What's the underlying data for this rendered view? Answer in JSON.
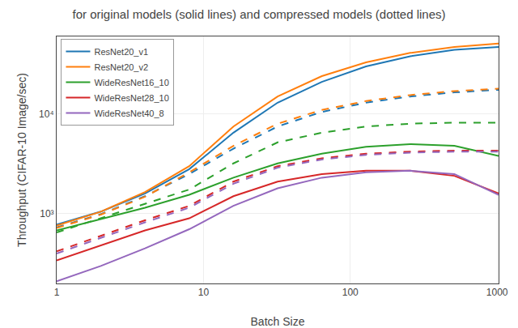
{
  "chart_data": {
    "type": "line",
    "title": "for original models (solid lines) and compressed models (dotted lines)",
    "xlabel": "Batch Size",
    "ylabel": "Throughput (CIFAR-10 Image/sec)",
    "x": [
      1,
      2,
      4,
      8,
      16,
      32,
      64,
      128,
      256,
      512,
      1024
    ],
    "series": [
      {
        "name": "ResNet20_v1",
        "color": "#1f77b4",
        "line_style": "solid",
        "values": [
          780,
          1050,
          1600,
          2800,
          6500,
          13000,
          21000,
          30000,
          38000,
          44000,
          47000
        ]
      },
      {
        "color": "#1f77b4",
        "line_style": "dashed",
        "values": [
          730,
          990,
          1500,
          2500,
          4500,
          7500,
          10500,
          13000,
          15000,
          16500,
          17500
        ]
      },
      {
        "name": "ResNet20_v2",
        "color": "#ff7f0e",
        "line_style": "solid",
        "values": [
          760,
          1050,
          1650,
          3000,
          7500,
          15000,
          24000,
          33000,
          41000,
          47000,
          51000
        ]
      },
      {
        "color": "#ff7f0e",
        "line_style": "dashed",
        "values": [
          720,
          980,
          1480,
          2600,
          4800,
          8000,
          11000,
          13500,
          15500,
          17000,
          18000
        ]
      },
      {
        "name": "WideResNet16_10",
        "color": "#2ca02c",
        "line_style": "solid",
        "values": [
          680,
          890,
          1150,
          1550,
          2300,
          3200,
          4000,
          4700,
          5000,
          4800,
          3800
        ]
      },
      {
        "color": "#2ca02c",
        "line_style": "dashed",
        "values": [
          650,
          900,
          1250,
          1750,
          3200,
          5200,
          6500,
          7500,
          8000,
          8200,
          8200
        ]
      },
      {
        "name": "WideResNet28_10",
        "color": "#d62728",
        "line_style": "solid",
        "values": [
          340,
          480,
          680,
          900,
          1500,
          2100,
          2500,
          2700,
          2700,
          2400,
          1600
        ]
      },
      {
        "color": "#d62728",
        "line_style": "dashed",
        "values": [
          420,
          600,
          860,
          1200,
          2100,
          3000,
          3600,
          4000,
          4200,
          4300,
          4300
        ]
      },
      {
        "name": "WideResNet40_8",
        "color": "#9467bd",
        "line_style": "solid",
        "values": [
          210,
          300,
          450,
          700,
          1200,
          1800,
          2300,
          2600,
          2700,
          2500,
          1550
        ]
      },
      {
        "color": "#9467bd",
        "line_style": "dashed",
        "values": [
          400,
          570,
          820,
          1150,
          2000,
          2900,
          3500,
          3900,
          4100,
          4200,
          4200
        ]
      }
    ],
    "log": true,
    "xlim": [
      1,
      1024
    ],
    "ylim": [
      200,
      60000
    ],
    "xticks": [
      1,
      10,
      100,
      1000
    ],
    "yticks": [
      {
        "value": 1000,
        "label": "10³"
      },
      {
        "value": 10000,
        "label": "10⁴"
      }
    ],
    "grid": true,
    "legend": "upper left"
  }
}
